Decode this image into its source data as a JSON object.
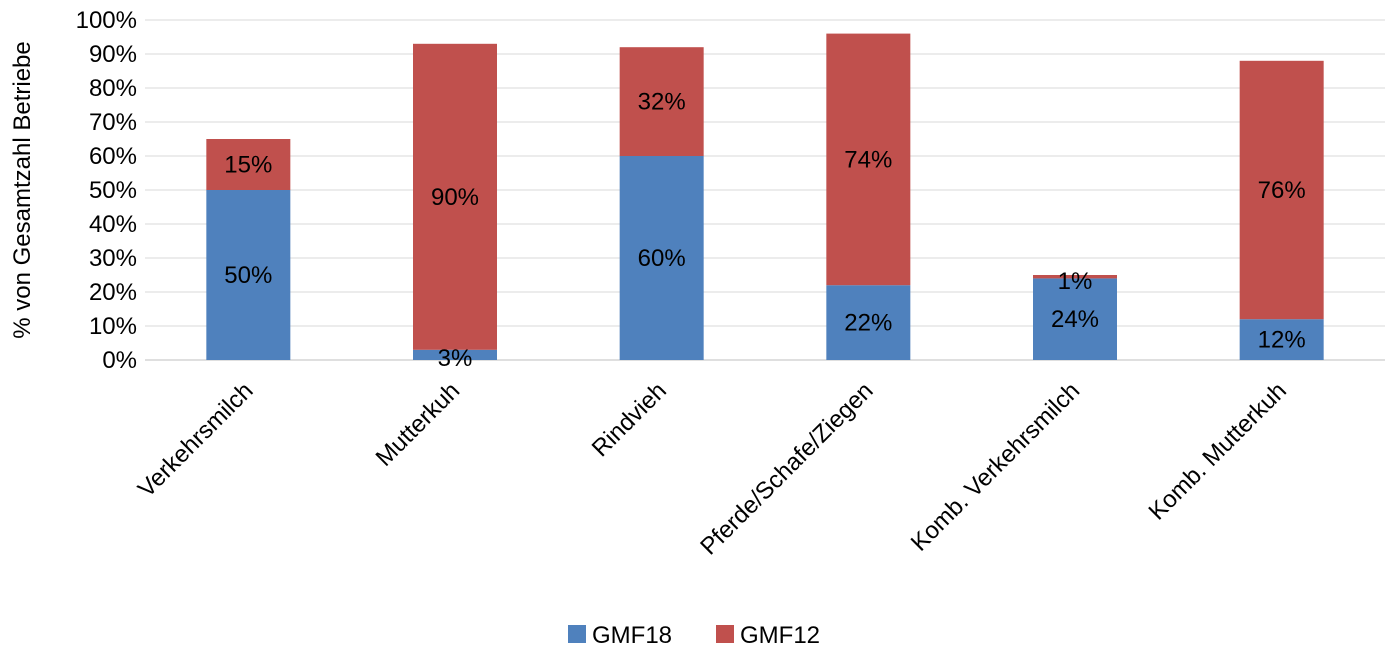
{
  "chart_data": {
    "type": "bar",
    "stacked": true,
    "categories": [
      "Verkehrsmilch",
      "Mutterkuh",
      "Rindvieh",
      "Pferde/Schafe/Ziegen",
      "Komb. Verkehrsmilch",
      "Komb. Mutterkuh"
    ],
    "series": [
      {
        "name": "GMF18",
        "color": "#4F81BD",
        "values": [
          50,
          3,
          60,
          22,
          24,
          12
        ],
        "labels": [
          "50%",
          "3%",
          "60%",
          "22%",
          "24%",
          "12%"
        ]
      },
      {
        "name": "GMF12",
        "color": "#C0504D",
        "values": [
          15,
          90,
          32,
          74,
          1,
          76
        ],
        "labels": [
          "15%",
          "90%",
          "32%",
          "74%",
          "1%",
          "76%"
        ]
      }
    ],
    "title": "",
    "xlabel": "",
    "ylabel": "% von Gesamtzahl Betriebe",
    "ylim": [
      0,
      100
    ],
    "yticks": [
      "0%",
      "10%",
      "20%",
      "30%",
      "40%",
      "50%",
      "60%",
      "70%",
      "80%",
      "90%",
      "100%"
    ],
    "grid": true,
    "legend_position": "bottom"
  }
}
